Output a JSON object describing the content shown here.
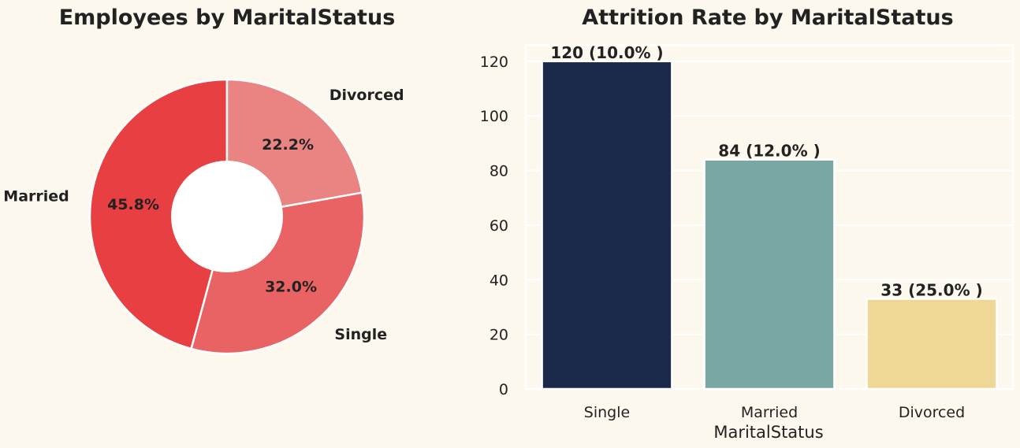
{
  "chart_data": [
    {
      "type": "pie",
      "title": "Employees by MaritalStatus",
      "categories": [
        "Married",
        "Single",
        "Divorced"
      ],
      "values": [
        45.8,
        32.0,
        22.2
      ],
      "percent_labels": [
        "45.8%",
        "32.0%",
        "22.2%"
      ],
      "colors": [
        "#e83f42",
        "#e96364",
        "#e98483"
      ],
      "donut": true
    },
    {
      "type": "bar",
      "title": "Attrition Rate by MaritalStatus",
      "categories": [
        "Single",
        "Married",
        "Divorced"
      ],
      "values": [
        120,
        84,
        33
      ],
      "data_labels": [
        "120 (10.0% )",
        "84 (12.0% )",
        "33 (25.0% )"
      ],
      "colors": [
        "#1b2a4a",
        "#79a7a1",
        "#efd896"
      ],
      "xlabel": "MaritalStatus",
      "ylabel": "",
      "ylim": [
        0,
        126
      ],
      "yticks": [
        0,
        20,
        40,
        60,
        80,
        100,
        120
      ],
      "grid": true
    }
  ]
}
